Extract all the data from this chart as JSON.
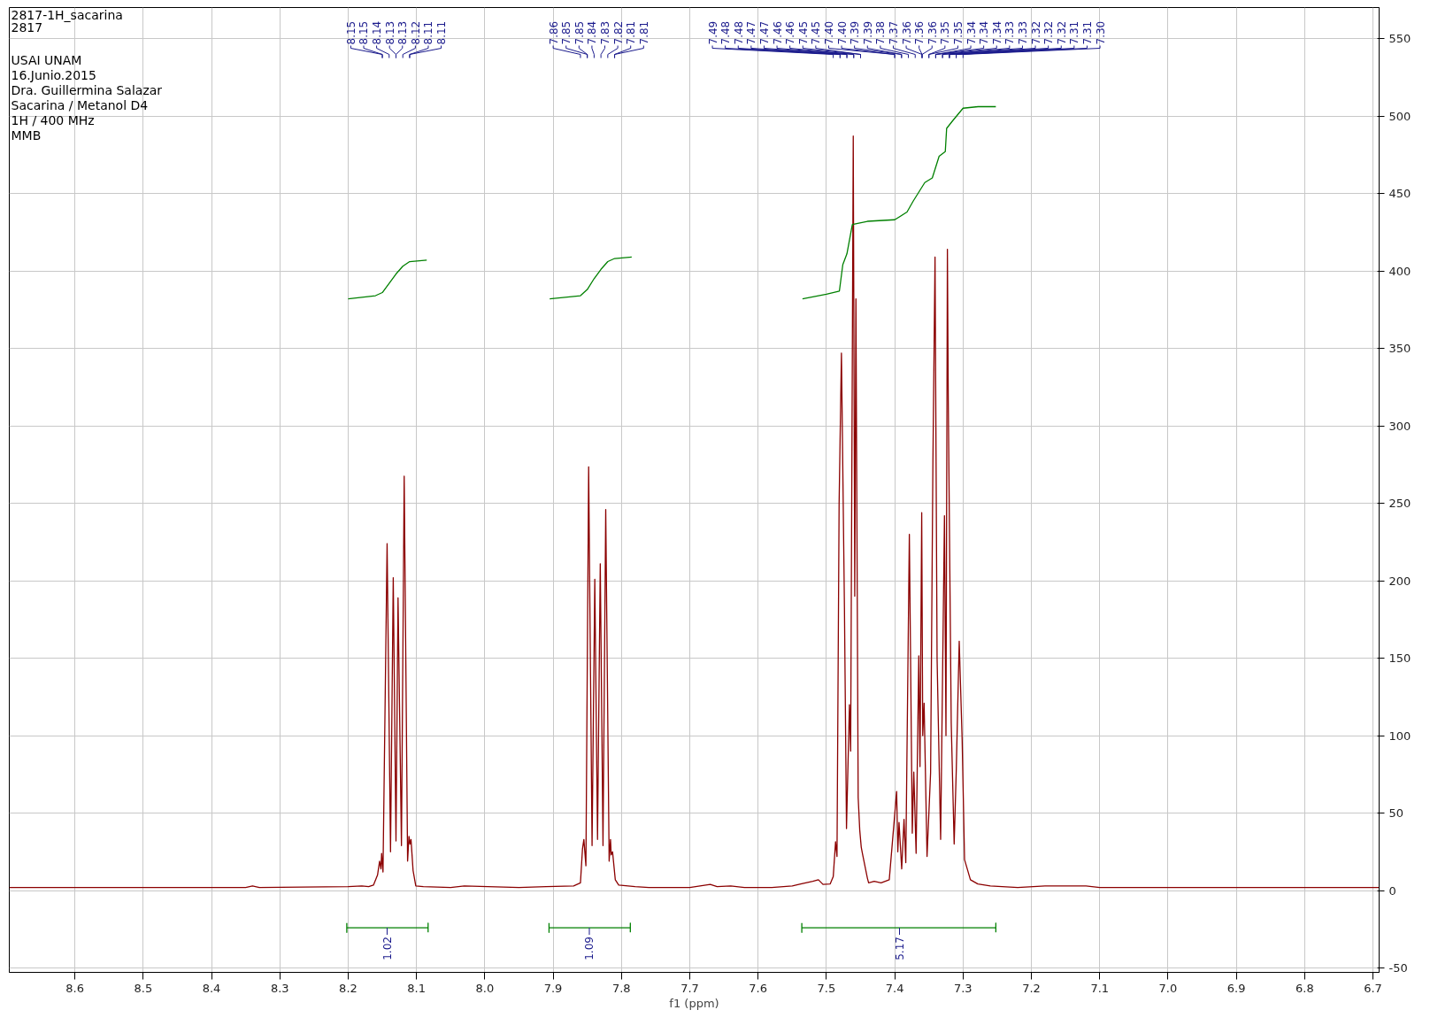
{
  "chart_data": {
    "type": "line",
    "title": "2817-1H_sacarina",
    "subtitle": "2817",
    "xlabel": "f1 (ppm)",
    "xlim": [
      8.696,
      6.691
    ],
    "ylim": [
      -52.8,
      570
    ],
    "xticks": [
      8.6,
      8.5,
      8.4,
      8.3,
      8.2,
      8.1,
      {
        "value": 8.0,
        "label": "8.0"
      },
      7.9,
      7.8,
      7.7,
      7.6,
      7.5,
      7.4,
      7.3,
      7.2,
      7.1,
      {
        "value": 7.0,
        "label": "7.0"
      },
      6.9,
      6.8,
      6.7
    ],
    "yticks": [
      -50,
      0,
      50,
      100,
      150,
      200,
      250,
      300,
      350,
      400,
      450,
      500,
      550
    ],
    "grid": true,
    "series": [
      {
        "color": "#8b0000",
        "x": [
          8.696,
          8.35,
          8.34,
          8.33,
          8.2,
          8.18,
          8.17,
          8.163,
          8.157,
          8.154,
          8.152,
          8.151,
          8.149,
          8.143,
          8.138,
          8.134,
          8.13,
          8.127,
          8.122,
          8.118,
          8.113,
          8.111,
          8.1095,
          8.108,
          8.105,
          8.101,
          8.09,
          8.05,
          8.03,
          7.95,
          7.91,
          7.87,
          7.86,
          7.857,
          7.855,
          7.852,
          7.848,
          7.843,
          7.839,
          7.835,
          7.831,
          7.827,
          7.823,
          7.818,
          7.816,
          7.815,
          7.813,
          7.809,
          7.804,
          7.78,
          7.76,
          7.7,
          7.67,
          7.66,
          7.64,
          7.62,
          7.58,
          7.55,
          7.5376,
          7.52,
          7.5117,
          7.505,
          7.4944,
          7.49,
          7.4866,
          7.4845,
          7.4814,
          7.478,
          7.4736,
          7.4706,
          7.4663,
          7.4645,
          7.4607,
          7.4585,
          7.4568,
          7.4535,
          7.4512,
          7.449,
          7.4473,
          7.44,
          7.4382,
          7.43,
          7.42,
          7.408,
          7.3972,
          7.3955,
          7.3937,
          7.3898,
          7.3864,
          7.3838,
          7.3786,
          7.3743,
          7.3721,
          7.3687,
          7.3648,
          7.363,
          7.3605,
          7.359,
          7.357,
          7.3527,
          7.3475,
          7.3441,
          7.341,
          7.338,
          7.3328,
          7.3272,
          7.325,
          7.3229,
          7.3216,
          7.3173,
          7.313,
          7.31,
          7.3056,
          7.3013,
          7.2978,
          7.2892,
          7.2784,
          7.26,
          7.22,
          7.18,
          7.12,
          7.1,
          6.691
        ],
        "values": [
          2,
          2,
          3,
          2,
          2.5,
          3,
          2.5,
          3.5,
          10,
          19,
          14,
          24,
          12,
          224,
          25,
          202,
          32,
          189,
          29,
          267.5,
          19,
          35,
          30,
          33,
          13,
          3,
          2.5,
          2,
          3,
          2,
          2.5,
          3,
          5,
          27,
          33,
          16,
          273.5,
          29,
          201,
          33,
          211,
          29,
          246,
          19,
          33,
          23,
          25,
          7,
          3.5,
          2.5,
          2,
          2,
          4,
          2.5,
          3,
          2,
          2,
          3,
          4.3,
          6,
          7,
          4,
          4.3,
          9,
          31.5,
          22,
          250,
          347,
          183,
          40,
          120,
          90,
          487,
          190,
          382,
          60,
          39,
          28,
          24,
          8,
          5,
          6,
          5,
          7,
          64,
          25,
          44,
          14,
          46,
          18,
          230,
          37,
          76.5,
          24,
          151.5,
          80,
          244,
          100,
          121,
          22,
          76,
          277,
          409,
          150,
          33,
          242,
          100,
          414,
          316,
          108,
          30,
          76.5,
          161,
          97,
          20,
          7,
          4.3,
          3,
          2,
          3,
          3,
          2,
          2
        ]
      },
      {
        "color": "#008000",
        "x": [
          8.2,
          8.16,
          8.15,
          8.14,
          8.13,
          8.12,
          8.11,
          8.085
        ],
        "values": [
          382,
          384,
          386,
          392,
          398,
          403,
          406,
          407
        ]
      },
      {
        "color": "#008000",
        "x": [
          7.905,
          7.86,
          7.85,
          7.84,
          7.83,
          7.82,
          7.81,
          7.785
        ],
        "values": [
          382,
          384,
          388,
          395,
          401,
          406,
          408,
          409
        ]
      },
      {
        "color": "#008000",
        "x": [
          7.535,
          7.5,
          7.481,
          7.476,
          7.47,
          7.462,
          7.44,
          7.4,
          7.382,
          7.373,
          7.356,
          7.345,
          7.335,
          7.326,
          7.324,
          7.315,
          7.3,
          7.278,
          7.252
        ],
        "values": [
          382,
          385,
          387,
          404,
          411,
          430,
          432,
          433,
          438,
          445,
          457,
          460,
          474,
          477,
          492,
          497,
          505,
          506,
          506
        ]
      },
      {
        "color": "#008000",
        "x": [
          8.202,
          8.202,
          8.202,
          8.083,
          8.083,
          8.083
        ],
        "values": [
          -21,
          -27,
          -24,
          -24,
          -21,
          -27
        ]
      },
      {
        "color": "#008000",
        "x": [
          7.906,
          7.906,
          7.906,
          7.787,
          7.787,
          7.787
        ],
        "values": [
          -21,
          -27,
          -24,
          -24,
          -21,
          -27
        ]
      },
      {
        "color": "#008000",
        "x": [
          7.536,
          7.536,
          7.536,
          7.252,
          7.252,
          7.252
        ],
        "values": [
          -21,
          -27,
          -24,
          -24,
          -21,
          -27
        ]
      }
    ],
    "annotations": [
      {
        "text": "1.02",
        "x": 8.143,
        "y": -24
      },
      {
        "text": "1.09",
        "x": 7.847,
        "y": -24
      },
      {
        "text": "5.17",
        "x": 7.393,
        "y": -24
      },
      "USAI UNAM",
      "16.Junio.2015",
      "Dra. Guillermina Salazar",
      "Sacarina  / Metanol D4",
      "1H / 400 MHz",
      "MMB",
      {
        "text": "8.15",
        "x": 8.15
      },
      {
        "text": "8.15",
        "x": 8.15
      },
      {
        "text": "8.14",
        "x": 8.14
      },
      {
        "text": "8.13",
        "x": 8.13
      },
      {
        "text": "8.13",
        "x": 8.13
      },
      {
        "text": "8.12",
        "x": 8.12
      },
      {
        "text": "8.11",
        "x": 8.11
      },
      {
        "text": "8.11",
        "x": 8.11
      },
      {
        "text": "7.86",
        "x": 7.86
      },
      {
        "text": "7.85",
        "x": 7.85
      },
      {
        "text": "7.85",
        "x": 7.85
      },
      {
        "text": "7.84",
        "x": 7.84
      },
      {
        "text": "7.83",
        "x": 7.83
      },
      {
        "text": "7.82",
        "x": 7.82
      },
      {
        "text": "7.81",
        "x": 7.81
      },
      {
        "text": "7.81",
        "x": 7.81
      },
      {
        "text": "7.49",
        "x": 7.49
      },
      {
        "text": "7.48",
        "x": 7.48
      },
      {
        "text": "7.48",
        "x": 7.48
      },
      {
        "text": "7.47",
        "x": 7.47
      },
      {
        "text": "7.47",
        "x": 7.47
      },
      {
        "text": "7.46",
        "x": 7.46
      },
      {
        "text": "7.46",
        "x": 7.46
      },
      {
        "text": "7.45",
        "x": 7.45
      },
      {
        "text": "7.45",
        "x": 7.45
      },
      {
        "text": "7.40",
        "x": 7.4
      },
      {
        "text": "7.40",
        "x": 7.4
      },
      {
        "text": "7.39",
        "x": 7.39
      },
      {
        "text": "7.39",
        "x": 7.39
      },
      {
        "text": "7.38",
        "x": 7.38
      },
      {
        "text": "7.37",
        "x": 7.37
      },
      {
        "text": "7.36",
        "x": 7.36
      },
      {
        "text": "7.36",
        "x": 7.36
      },
      {
        "text": "7.36",
        "x": 7.36
      },
      {
        "text": "7.35",
        "x": 7.35
      },
      {
        "text": "7.35",
        "x": 7.35
      },
      {
        "text": "7.34",
        "x": 7.34
      },
      {
        "text": "7.34",
        "x": 7.34
      },
      {
        "text": "7.34",
        "x": 7.34
      },
      {
        "text": "7.33",
        "x": 7.33
      },
      {
        "text": "7.33",
        "x": 7.33
      },
      {
        "text": "7.32",
        "x": 7.32
      },
      {
        "text": "7.32",
        "x": 7.32
      },
      {
        "text": "7.32",
        "x": 7.32
      },
      {
        "text": "7.31",
        "x": 7.31
      },
      {
        "text": "7.31",
        "x": 7.31
      },
      {
        "text": "7.30",
        "x": 7.3
      }
    ]
  }
}
